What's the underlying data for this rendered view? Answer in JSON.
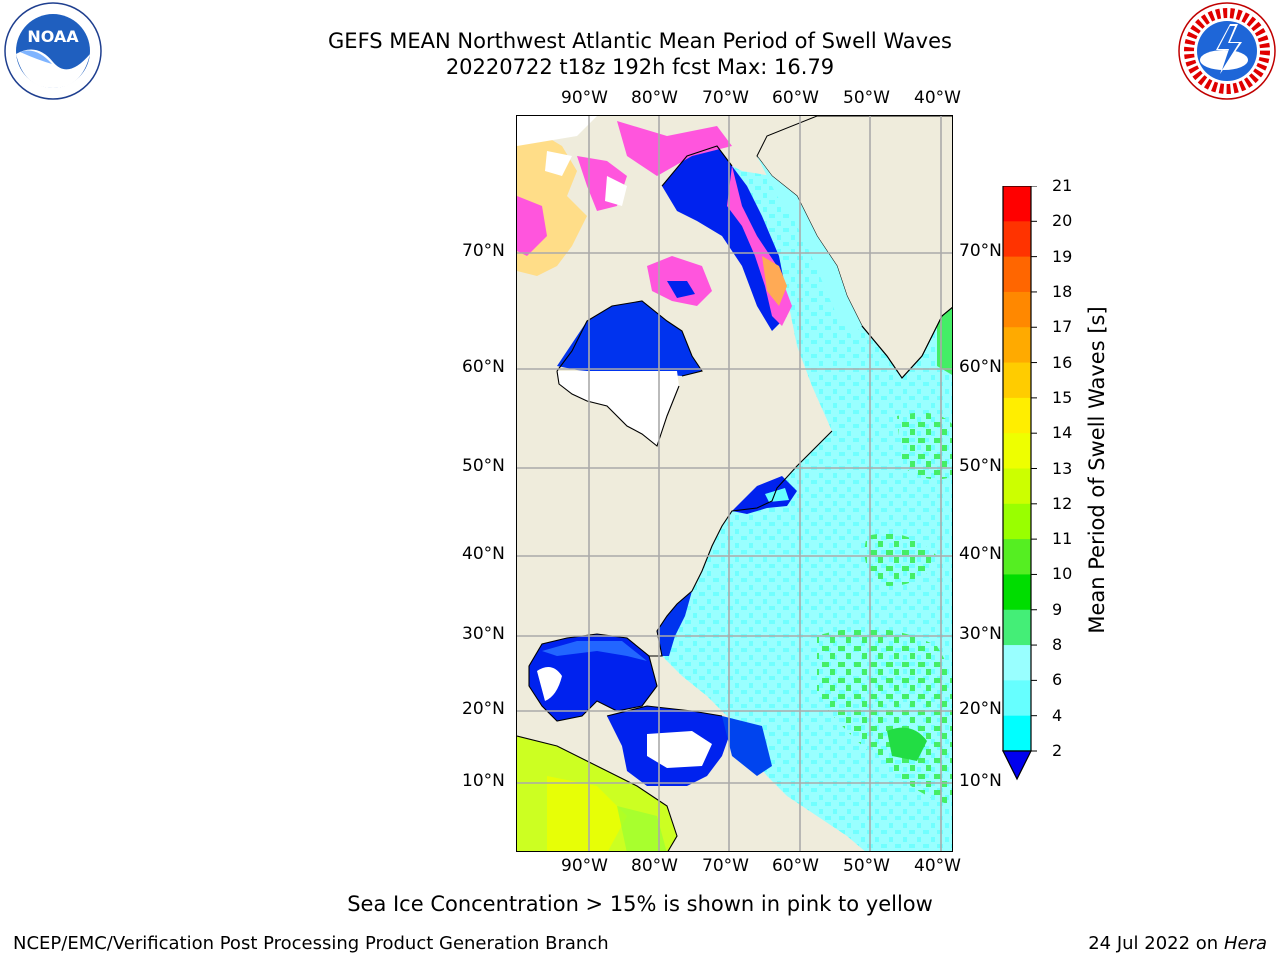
{
  "header": {
    "title": "GEFS MEAN Northwest Atlantic Mean Period of Swell Waves",
    "subtitle": "20220722 t18z 192h fcst   Max: 16.79"
  },
  "logos": {
    "left": {
      "text": "NOAA",
      "icon": "noaa-logo-icon"
    },
    "right": {
      "icon": "nws-logo-icon"
    }
  },
  "map": {
    "lon_labels": [
      "90°W",
      "80°W",
      "70°W",
      "60°W",
      "50°W",
      "40°W"
    ],
    "lat_labels": [
      "70°N",
      "60°N",
      "50°N",
      "40°N",
      "30°N",
      "20°N",
      "10°N"
    ],
    "colors": {
      "land": "#efecdc",
      "ocean_main": "#99ffff",
      "ocean_light": "#66ffff",
      "shallow": "#0022ee",
      "green": "#55ee77",
      "ice_pink": "#ff55dd",
      "ice_orange": "#ffaa55"
    }
  },
  "colorbar": {
    "label": "Mean Period of Swell Waves [s]",
    "ticks": [
      "21",
      "20",
      "19",
      "18",
      "17",
      "16",
      "15",
      "14",
      "13",
      "12",
      "11",
      "10",
      "9",
      "8",
      "6",
      "4",
      "2"
    ],
    "colors": [
      "#ff0000",
      "#ff3300",
      "#ff6600",
      "#ff8800",
      "#ffaa00",
      "#ffcc00",
      "#ffee00",
      "#eeff00",
      "#ccff00",
      "#99ff00",
      "#55ee22",
      "#00dd00",
      "#44ee77",
      "#99ffff",
      "#66ffff",
      "#00ffff",
      "#00ddff",
      "#0077ff",
      "#0000ee"
    ]
  },
  "footer": {
    "note": "Sea Ice Concentration > 15% is shown in pink to yellow",
    "left": "NCEP/EMC/Verification Post Processing Product Generation Branch",
    "right_prefix": "24 Jul 2022 on ",
    "right_host": "Hera"
  }
}
